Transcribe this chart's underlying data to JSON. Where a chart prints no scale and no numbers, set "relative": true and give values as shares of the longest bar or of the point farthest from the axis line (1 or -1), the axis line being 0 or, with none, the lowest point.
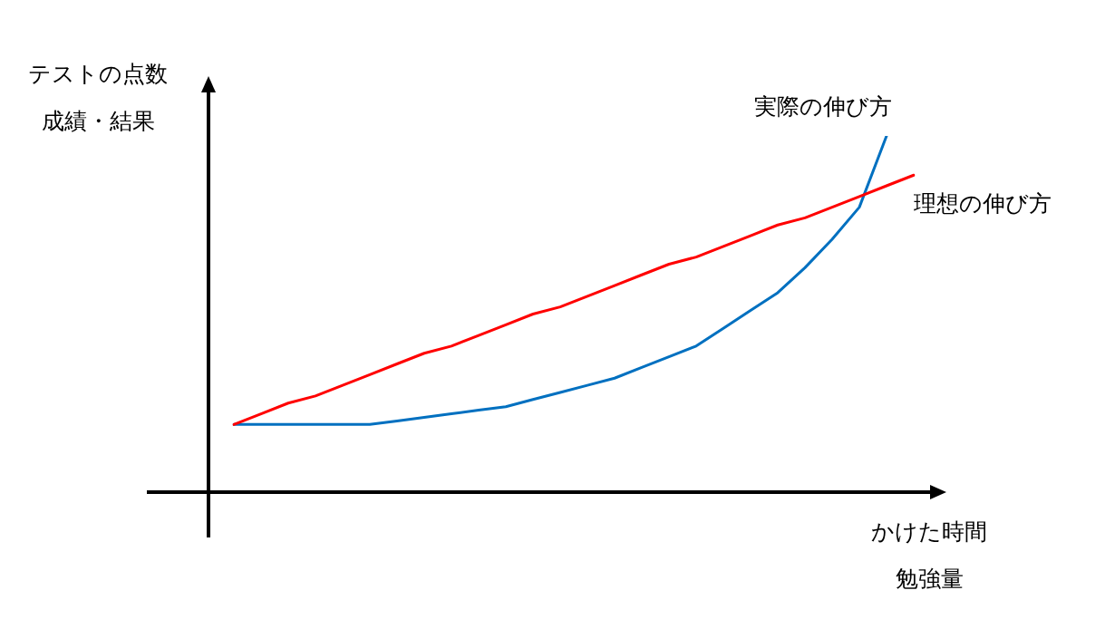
{
  "chart_data": {
    "type": "line",
    "relative": true,
    "xlabel": "かけた時間勉強量",
    "ylabel": "テストの点数成績・結果",
    "legend": false,
    "marker": "none",
    "line_style": "solid",
    "categories": [
      null,
      null,
      null,
      null,
      null,
      null,
      null,
      null,
      null,
      null,
      null,
      null,
      null,
      null,
      null,
      null,
      null,
      null,
      null,
      null,
      null,
      null,
      null,
      null,
      null,
      null
    ],
    "series": [
      {
        "name": "理想の伸び方",
        "color": "#ff0000",
        "values": [
          0.19,
          0.22,
          0.25,
          0.27,
          0.3,
          0.33,
          0.36,
          0.39,
          0.41,
          0.44,
          0.47,
          0.5,
          0.52,
          0.55,
          0.58,
          0.61,
          0.64,
          0.66,
          0.69,
          0.72,
          0.75,
          0.77,
          0.8,
          0.83,
          0.86,
          0.89
        ]
      },
      {
        "name": "実際の伸び方",
        "color": "#0070c0",
        "values": [
          0.19,
          0.19,
          0.19,
          0.19,
          0.19,
          0.19,
          0.2,
          0.21,
          0.22,
          0.23,
          0.24,
          0.26,
          0.28,
          0.3,
          0.32,
          0.35,
          0.38,
          0.41,
          0.46,
          0.51,
          0.56,
          0.63,
          0.71,
          0.8,
          1,
          null
        ]
      }
    ]
  }
}
